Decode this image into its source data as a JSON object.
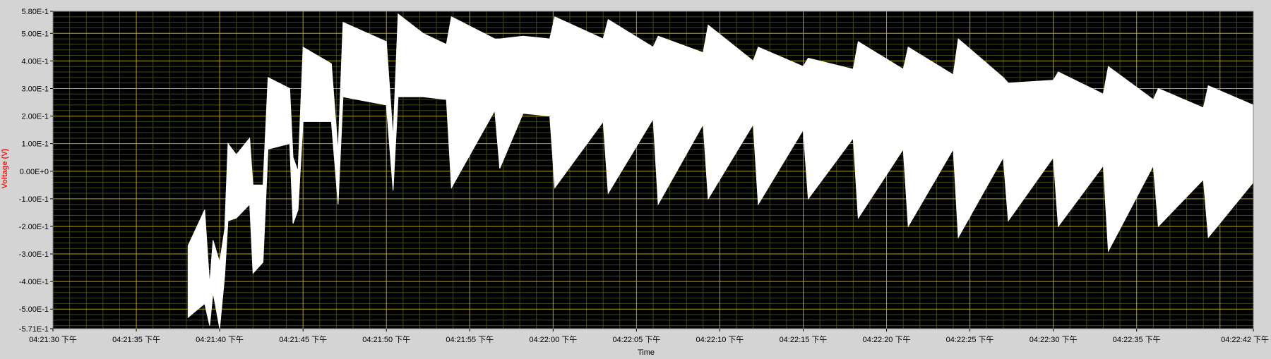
{
  "colors": {
    "background": "#d4d4d4",
    "plot_background": "#000000",
    "major_grid": "#b3a600",
    "minor_grid": "#3d4a10",
    "trace": "#ffffff",
    "ylabel": "#ff1c1c",
    "tick_text": "#000000"
  },
  "chart_data": {
    "type": "area",
    "title": "",
    "xlabel": "Time",
    "ylabel": "Voltage (V)",
    "grid": true,
    "ylim": [
      -0.571,
      0.58
    ],
    "xlim": [
      "04:21:30 下午",
      "04:22:42 下午"
    ],
    "y_ticks": [
      {
        "value": 0.58,
        "label": "5.80E-1"
      },
      {
        "value": 0.5,
        "label": "5.00E-1"
      },
      {
        "value": 0.4,
        "label": "4.00E-1"
      },
      {
        "value": 0.3,
        "label": "3.00E-1"
      },
      {
        "value": 0.2,
        "label": "2.00E-1"
      },
      {
        "value": 0.1,
        "label": "1.00E-1"
      },
      {
        "value": 0.0,
        "label": "0.00E+0"
      },
      {
        "value": -0.1,
        "label": "-1.00E-1"
      },
      {
        "value": -0.2,
        "label": "-2.00E-1"
      },
      {
        "value": -0.3,
        "label": "-3.00E-1"
      },
      {
        "value": -0.4,
        "label": "-4.00E-1"
      },
      {
        "value": -0.5,
        "label": "-5.00E-1"
      },
      {
        "value": -0.571,
        "label": "-5.71E-1"
      }
    ],
    "x_ticks": [
      {
        "value": 0,
        "label": "04:21:30 下午"
      },
      {
        "value": 5,
        "label": "04:21:35 下午"
      },
      {
        "value": 10,
        "label": "04:21:40 下午"
      },
      {
        "value": 15,
        "label": "04:21:45 下午"
      },
      {
        "value": 20,
        "label": "04:21:50 下午"
      },
      {
        "value": 25,
        "label": "04:21:55 下午"
      },
      {
        "value": 30,
        "label": "04:22:00 下午"
      },
      {
        "value": 35,
        "label": "04:22:05 下午"
      },
      {
        "value": 40,
        "label": "04:22:10 下午"
      },
      {
        "value": 45,
        "label": "04:22:15 下午"
      },
      {
        "value": 50,
        "label": "04:22:20 下午"
      },
      {
        "value": 55,
        "label": "04:22:25 下午"
      },
      {
        "value": 60,
        "label": "04:22:30 下午"
      },
      {
        "value": 65,
        "label": "04:22:35 下午"
      },
      {
        "value": 72,
        "label": "04:22:42 下午"
      }
    ],
    "series": [
      {
        "upper": [
          {
            "x": 8.1,
            "y": -0.27
          },
          {
            "x": 9.1,
            "y": -0.14
          },
          {
            "x": 9.4,
            "y": -0.41
          },
          {
            "x": 9.6,
            "y": -0.25
          },
          {
            "x": 10.0,
            "y": -0.33
          },
          {
            "x": 10.3,
            "y": -0.21
          },
          {
            "x": 10.5,
            "y": 0.1
          },
          {
            "x": 11.0,
            "y": 0.06
          },
          {
            "x": 11.8,
            "y": 0.12
          },
          {
            "x": 12.0,
            "y": -0.05
          },
          {
            "x": 12.6,
            "y": -0.05
          },
          {
            "x": 12.9,
            "y": 0.34
          },
          {
            "x": 14.2,
            "y": 0.3
          },
          {
            "x": 14.4,
            "y": 0.05
          },
          {
            "x": 14.7,
            "y": 0.0
          },
          {
            "x": 15.0,
            "y": 0.45
          },
          {
            "x": 16.7,
            "y": 0.39
          },
          {
            "x": 17.1,
            "y": 0.07
          },
          {
            "x": 17.4,
            "y": 0.54
          },
          {
            "x": 20.0,
            "y": 0.47
          },
          {
            "x": 20.4,
            "y": 0.12
          },
          {
            "x": 20.7,
            "y": 0.57
          },
          {
            "x": 22.2,
            "y": 0.5
          },
          {
            "x": 23.6,
            "y": 0.46
          },
          {
            "x": 23.9,
            "y": 0.56
          },
          {
            "x": 26.5,
            "y": 0.48
          },
          {
            "x": 26.8,
            "y": 0.48
          },
          {
            "x": 28.2,
            "y": 0.49
          },
          {
            "x": 29.8,
            "y": 0.48
          },
          {
            "x": 30.1,
            "y": 0.56
          },
          {
            "x": 33.0,
            "y": 0.48
          },
          {
            "x": 33.3,
            "y": 0.55
          },
          {
            "x": 36.0,
            "y": 0.45
          },
          {
            "x": 36.3,
            "y": 0.49
          },
          {
            "x": 39.0,
            "y": 0.43
          },
          {
            "x": 39.3,
            "y": 0.53
          },
          {
            "x": 42.0,
            "y": 0.4
          },
          {
            "x": 42.3,
            "y": 0.45
          },
          {
            "x": 45.0,
            "y": 0.38
          },
          {
            "x": 45.3,
            "y": 0.41
          },
          {
            "x": 48.0,
            "y": 0.37
          },
          {
            "x": 48.3,
            "y": 0.47
          },
          {
            "x": 51.0,
            "y": 0.37
          },
          {
            "x": 51.3,
            "y": 0.45
          },
          {
            "x": 54.0,
            "y": 0.35
          },
          {
            "x": 54.3,
            "y": 0.48
          },
          {
            "x": 57.0,
            "y": 0.34
          },
          {
            "x": 57.3,
            "y": 0.32
          },
          {
            "x": 60.0,
            "y": 0.33
          },
          {
            "x": 60.3,
            "y": 0.36
          },
          {
            "x": 63.0,
            "y": 0.28
          },
          {
            "x": 63.3,
            "y": 0.38
          },
          {
            "x": 66.0,
            "y": 0.26
          },
          {
            "x": 66.3,
            "y": 0.3
          },
          {
            "x": 69.0,
            "y": 0.23
          },
          {
            "x": 69.3,
            "y": 0.31
          },
          {
            "x": 72.0,
            "y": 0.24
          }
        ],
        "lower": [
          {
            "x": 8.1,
            "y": -0.53
          },
          {
            "x": 9.1,
            "y": -0.48
          },
          {
            "x": 9.4,
            "y": -0.56
          },
          {
            "x": 9.6,
            "y": -0.44
          },
          {
            "x": 10.0,
            "y": -0.57
          },
          {
            "x": 10.3,
            "y": -0.38
          },
          {
            "x": 10.5,
            "y": -0.18
          },
          {
            "x": 11.0,
            "y": -0.17
          },
          {
            "x": 11.8,
            "y": -0.12
          },
          {
            "x": 12.0,
            "y": -0.37
          },
          {
            "x": 12.6,
            "y": -0.33
          },
          {
            "x": 12.9,
            "y": 0.08
          },
          {
            "x": 14.2,
            "y": 0.1
          },
          {
            "x": 14.4,
            "y": -0.19
          },
          {
            "x": 14.7,
            "y": -0.14
          },
          {
            "x": 15.0,
            "y": 0.18
          },
          {
            "x": 16.7,
            "y": 0.18
          },
          {
            "x": 17.1,
            "y": -0.12
          },
          {
            "x": 17.4,
            "y": 0.27
          },
          {
            "x": 20.0,
            "y": 0.24
          },
          {
            "x": 20.4,
            "y": -0.07
          },
          {
            "x": 20.7,
            "y": 0.27
          },
          {
            "x": 22.2,
            "y": 0.27
          },
          {
            "x": 23.6,
            "y": 0.26
          },
          {
            "x": 23.9,
            "y": -0.06
          },
          {
            "x": 26.5,
            "y": 0.22
          },
          {
            "x": 26.8,
            "y": 0.01
          },
          {
            "x": 28.2,
            "y": 0.21
          },
          {
            "x": 29.8,
            "y": 0.2
          },
          {
            "x": 30.1,
            "y": -0.06
          },
          {
            "x": 33.0,
            "y": 0.18
          },
          {
            "x": 33.3,
            "y": -0.08
          },
          {
            "x": 36.0,
            "y": 0.19
          },
          {
            "x": 36.3,
            "y": -0.12
          },
          {
            "x": 39.0,
            "y": 0.17
          },
          {
            "x": 39.3,
            "y": -0.1
          },
          {
            "x": 42.0,
            "y": 0.17
          },
          {
            "x": 42.3,
            "y": -0.12
          },
          {
            "x": 45.0,
            "y": 0.15
          },
          {
            "x": 45.3,
            "y": -0.1
          },
          {
            "x": 48.0,
            "y": 0.12
          },
          {
            "x": 48.3,
            "y": -0.17
          },
          {
            "x": 51.0,
            "y": 0.08
          },
          {
            "x": 51.3,
            "y": -0.2
          },
          {
            "x": 54.0,
            "y": 0.08
          },
          {
            "x": 54.3,
            "y": -0.24
          },
          {
            "x": 57.0,
            "y": 0.05
          },
          {
            "x": 57.3,
            "y": -0.18
          },
          {
            "x": 60.0,
            "y": 0.05
          },
          {
            "x": 60.3,
            "y": -0.2
          },
          {
            "x": 63.0,
            "y": 0.02
          },
          {
            "x": 63.3,
            "y": -0.29
          },
          {
            "x": 66.0,
            "y": 0.02
          },
          {
            "x": 66.3,
            "y": -0.2
          },
          {
            "x": 69.0,
            "y": -0.03
          },
          {
            "x": 69.3,
            "y": -0.24
          },
          {
            "x": 72.0,
            "y": -0.04
          }
        ]
      }
    ]
  }
}
